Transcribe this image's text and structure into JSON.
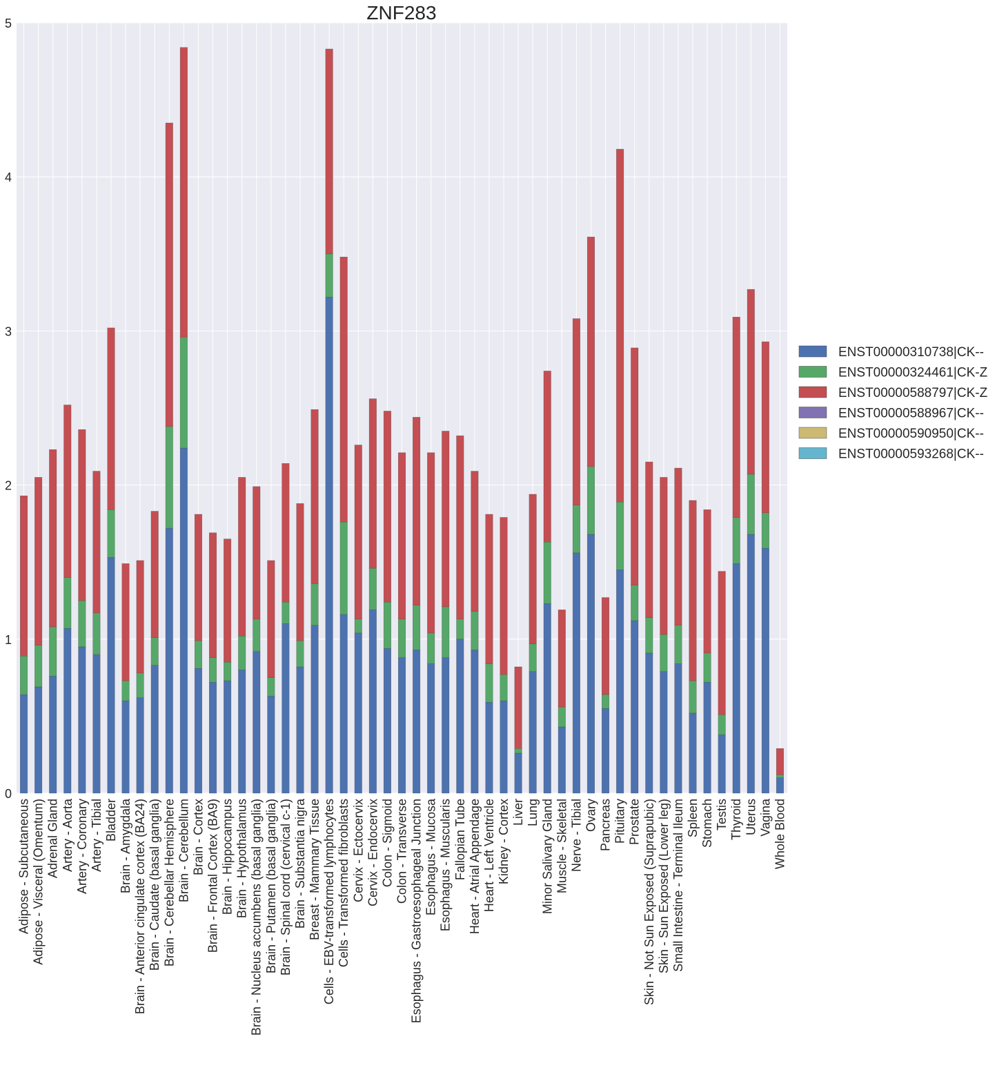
{
  "chart_data": {
    "type": "bar",
    "stacked": true,
    "title": "ZNF283",
    "xlabel": "",
    "ylabel": "",
    "ylim": [
      0,
      5
    ],
    "yticks": [
      0,
      1,
      2,
      3,
      4,
      5
    ],
    "grid": true,
    "legend_position": "right",
    "categories": [
      "Adipose - Subcutaneous",
      "Adipose - Visceral (Omentum)",
      "Adrenal Gland",
      "Artery - Aorta",
      "Artery - Coronary",
      "Artery - Tibial",
      "Bladder",
      "Brain - Amygdala",
      "Brain - Anterior cingulate cortex (BA24)",
      "Brain - Caudate (basal ganglia)",
      "Brain - Cerebellar Hemisphere",
      "Brain - Cerebellum",
      "Brain - Cortex",
      "Brain - Frontal Cortex (BA9)",
      "Brain - Hippocampus",
      "Brain - Hypothalamus",
      "Brain - Nucleus accumbens (basal ganglia)",
      "Brain - Putamen (basal ganglia)",
      "Brain - Spinal cord (cervical c-1)",
      "Brain - Substantia nigra",
      "Breast - Mammary Tissue",
      "Cells - EBV-transformed lymphocytes",
      "Cells - Transformed fibroblasts",
      "Cervix - Ectocervix",
      "Cervix - Endocervix",
      "Colon - Sigmoid",
      "Colon - Transverse",
      "Esophagus - Gastroesophageal Junction",
      "Esophagus - Mucosa",
      "Esophagus - Muscularis",
      "Fallopian Tube",
      "Heart - Atrial Appendage",
      "Heart - Left Ventricle",
      "Kidney - Cortex",
      "Liver",
      "Lung",
      "Minor Salivary Gland",
      "Muscle - Skeletal",
      "Nerve - Tibial",
      "Ovary",
      "Pancreas",
      "Pituitary",
      "Prostate",
      "Skin - Not Sun Exposed (Suprapubic)",
      "Skin - Sun Exposed (Lower leg)",
      "Small Intestine - Terminal Ileum",
      "Spleen",
      "Stomach",
      "Testis",
      "Thyroid",
      "Uterus",
      "Vagina",
      "Whole Blood"
    ],
    "series": [
      {
        "name": "ENST00000310738|CK--",
        "color": "#4c72b0",
        "values": [
          0.64,
          0.69,
          0.76,
          1.07,
          0.95,
          0.9,
          1.53,
          0.6,
          0.62,
          0.83,
          1.72,
          2.24,
          0.81,
          0.72,
          0.73,
          0.8,
          0.92,
          0.63,
          1.1,
          0.82,
          1.09,
          3.22,
          1.16,
          1.04,
          1.19,
          0.94,
          0.88,
          0.93,
          0.84,
          0.88,
          1.0,
          0.93,
          0.59,
          0.6,
          0.26,
          0.79,
          1.23,
          0.43,
          1.56,
          1.68,
          0.55,
          1.45,
          1.12,
          0.91,
          0.79,
          0.84,
          0.52,
          0.72,
          0.38,
          1.49,
          1.68,
          1.59,
          0.1
        ]
      },
      {
        "name": "ENST00000324461|CK-Z",
        "color": "#55a868",
        "values": [
          0.25,
          0.27,
          0.32,
          0.33,
          0.3,
          0.27,
          0.31,
          0.13,
          0.16,
          0.18,
          0.66,
          0.72,
          0.18,
          0.16,
          0.12,
          0.22,
          0.21,
          0.12,
          0.14,
          0.17,
          0.27,
          0.28,
          0.6,
          0.09,
          0.27,
          0.3,
          0.25,
          0.29,
          0.2,
          0.33,
          0.13,
          0.25,
          0.25,
          0.17,
          0.03,
          0.18,
          0.4,
          0.13,
          0.31,
          0.44,
          0.09,
          0.44,
          0.23,
          0.23,
          0.24,
          0.25,
          0.21,
          0.19,
          0.13,
          0.3,
          0.39,
          0.23,
          0.02
        ]
      },
      {
        "name": "ENST00000588797|CK-Z",
        "color": "#c44e52",
        "values": [
          1.04,
          1.09,
          1.15,
          1.12,
          1.11,
          0.92,
          1.18,
          0.76,
          0.73,
          0.82,
          1.97,
          1.88,
          0.82,
          0.81,
          0.8,
          1.03,
          0.86,
          0.76,
          0.9,
          0.89,
          1.13,
          1.33,
          1.72,
          1.13,
          1.1,
          1.24,
          1.08,
          1.22,
          1.17,
          1.14,
          1.19,
          0.91,
          0.97,
          1.02,
          0.53,
          0.97,
          1.11,
          0.63,
          1.21,
          1.49,
          0.63,
          2.29,
          1.54,
          1.01,
          1.02,
          1.02,
          1.17,
          0.93,
          0.93,
          1.3,
          1.2,
          1.11,
          0.17
        ]
      },
      {
        "name": "ENST00000588967|CK--",
        "color": "#8172b2",
        "values": [
          0,
          0,
          0,
          0,
          0,
          0,
          0,
          0,
          0,
          0,
          0,
          0,
          0,
          0,
          0,
          0,
          0,
          0,
          0,
          0,
          0,
          0,
          0,
          0,
          0,
          0,
          0,
          0,
          0,
          0,
          0,
          0,
          0,
          0,
          0,
          0,
          0,
          0,
          0,
          0,
          0,
          0,
          0,
          0,
          0,
          0,
          0,
          0,
          0,
          0,
          0,
          0,
          0
        ]
      },
      {
        "name": "ENST00000590950|CK--",
        "color": "#ccb974",
        "values": [
          0,
          0,
          0,
          0,
          0,
          0,
          0,
          0,
          0,
          0,
          0,
          0,
          0,
          0,
          0,
          0,
          0,
          0,
          0,
          0,
          0,
          0,
          0,
          0,
          0,
          0,
          0,
          0,
          0,
          0,
          0,
          0,
          0,
          0,
          0,
          0,
          0,
          0,
          0,
          0,
          0,
          0,
          0,
          0,
          0,
          0,
          0,
          0,
          0,
          0,
          0,
          0,
          0
        ]
      },
      {
        "name": "ENST00000593268|CK--",
        "color": "#64b5cd",
        "values": [
          0,
          0,
          0,
          0,
          0,
          0,
          0,
          0,
          0,
          0,
          0,
          0,
          0,
          0,
          0,
          0,
          0,
          0,
          0,
          0,
          0,
          0,
          0,
          0,
          0,
          0,
          0,
          0,
          0,
          0,
          0,
          0,
          0,
          0,
          0,
          0,
          0,
          0,
          0,
          0,
          0,
          0,
          0,
          0,
          0,
          0,
          0,
          0,
          0,
          0,
          0,
          0,
          0
        ]
      }
    ]
  },
  "colors": {
    "plot_background": "#eaeaf2",
    "grid": "#ffffff"
  }
}
